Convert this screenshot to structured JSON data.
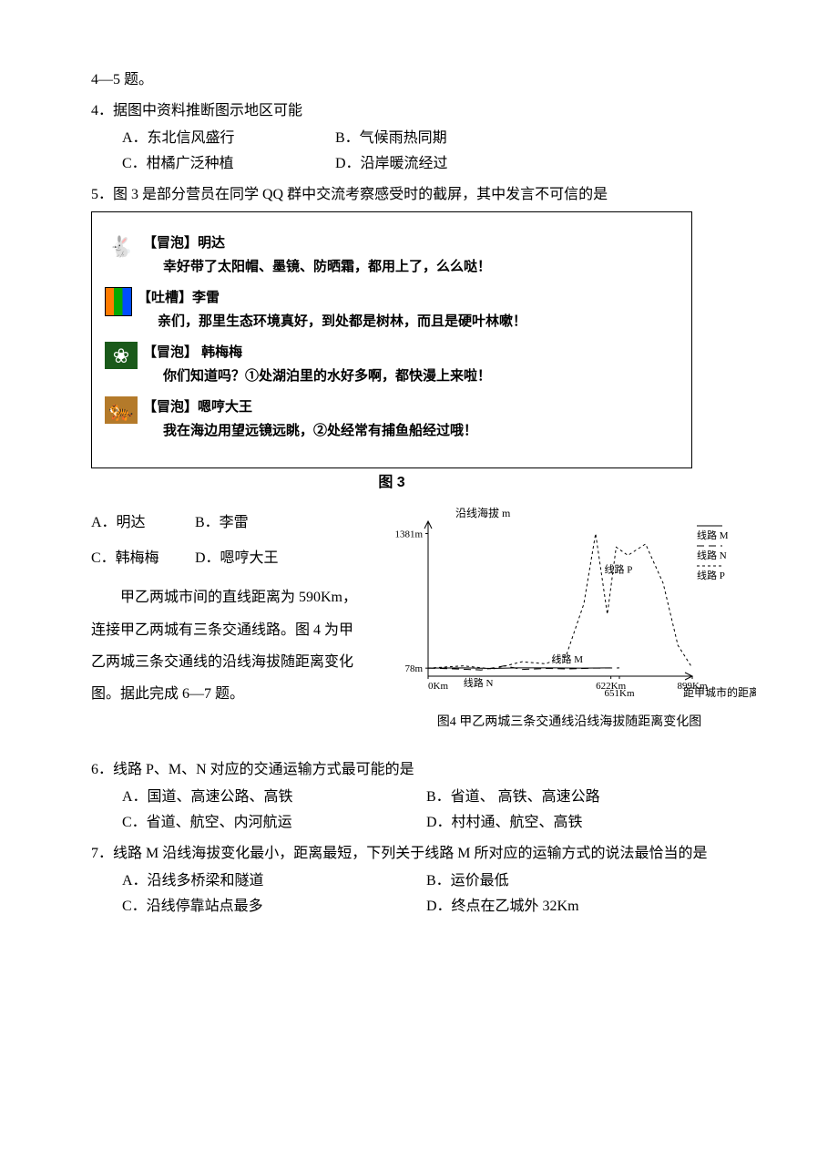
{
  "intro_continued": "4—5 题。",
  "q4": {
    "stem": "4．据图中资料推断图示地区可能",
    "A": "A．东北信风盛行",
    "B": "B．气候雨热同期",
    "C": "C．柑橘广泛种植",
    "D": "D．沿岸暖流经过"
  },
  "q5": {
    "stem": "5．图 3 是部分营员在同学 QQ 群中交流考察感受时的截屏，其中发言不可信的是",
    "chat": [
      {
        "tag": "【冒泡】明达",
        "msg": "幸好带了太阳帽、墨镜、防晒霜，都用上了，么么哒！",
        "avatar": "rabbit",
        "glyph": "🐇"
      },
      {
        "tag": "【吐槽】李雷",
        "msg": "亲们，那里生态环境真好，到处都是树林，而且是硬叶林嗽！",
        "avatar": "bars",
        "glyph": ""
      },
      {
        "tag": "【冒泡】 韩梅梅",
        "msg": "你们知道吗？①处湖泊里的水好多啊，都快漫上来啦！",
        "avatar": "flower",
        "glyph": "❀"
      },
      {
        "tag": "【冒泡】嗯哼大王",
        "msg": "我在海边用望远镜远眺，②处经常有捕鱼船经过哦！",
        "avatar": "tiger",
        "glyph": "🐅"
      }
    ],
    "fig_label": "图 3",
    "A": "A．明达",
    "B": "B．李雷",
    "C": "C．韩梅梅",
    "D": "D．嗯哼大王"
  },
  "para67": "　　甲乙两城市间的直线距离为 590Km，连接甲乙两城有三条交通线路。图 4 为甲乙两城三条交通线的沿线海拔随距离变化图。据此完成 6—7 题。",
  "chart4": {
    "type": "line",
    "y_title": "沿线海拔 m",
    "x_title": "距甲城市的距离 Km",
    "y_ticks": [
      {
        "v": 78,
        "label": "78m"
      },
      {
        "v": 1381,
        "label": "1381m"
      }
    ],
    "x_ticks": [
      {
        "v": 0,
        "label": "0Km"
      },
      {
        "v": 622,
        "label": "622Km"
      },
      {
        "v": 651,
        "label": "651Km"
      },
      {
        "v": 899,
        "label": "899Km"
      }
    ],
    "x_range": [
      0,
      899
    ],
    "y_range": [
      0,
      1500
    ],
    "legend": [
      {
        "name": "线路 M",
        "style": "solid"
      },
      {
        "name": "线路 N",
        "style": "long-dash"
      },
      {
        "name": "线路 P",
        "style": "short-dash"
      }
    ],
    "series": {
      "M": [
        [
          0,
          78
        ],
        [
          120,
          80
        ],
        [
          220,
          75
        ],
        [
          300,
          80
        ],
        [
          420,
          80
        ],
        [
          520,
          78
        ],
        [
          622,
          80
        ]
      ],
      "N": [
        [
          0,
          78
        ],
        [
          100,
          70
        ],
        [
          180,
          60
        ],
        [
          260,
          100
        ],
        [
          320,
          65
        ],
        [
          400,
          75
        ],
        [
          480,
          70
        ],
        [
          560,
          78
        ],
        [
          651,
          80
        ]
      ],
      "P": [
        [
          0,
          78
        ],
        [
          120,
          100
        ],
        [
          220,
          70
        ],
        [
          320,
          140
        ],
        [
          400,
          120
        ],
        [
          470,
          200
        ],
        [
          530,
          700
        ],
        [
          570,
          1381
        ],
        [
          610,
          600
        ],
        [
          640,
          1250
        ],
        [
          680,
          1170
        ],
        [
          740,
          1280
        ],
        [
          800,
          900
        ],
        [
          850,
          300
        ],
        [
          899,
          80
        ]
      ]
    },
    "inline_labels": {
      "left_M": "线路 M",
      "left_N": "线路 N",
      "right_M": "线路 M",
      "right_N": "线路 N",
      "mid_P": "线路 P",
      "right_P": "线路 P"
    },
    "caption": "图4 甲乙两城三条交通线沿线海拔随距离变化图",
    "colors": {
      "axis": "#000000",
      "line": "#000000",
      "bg": "#ffffff"
    },
    "stroke_width": 1
  },
  "q6": {
    "stem": "6．线路 P、M、N 对应的交通运输方式最可能的是",
    "A": "A．国道、高速公路、高铁",
    "B": "B．省道、 高铁、高速公路",
    "C": "C．省道、航空、内河航运",
    "D": "D．村村通、航空、高铁"
  },
  "q7": {
    "stem": "7．线路 M 沿线海拔变化最小，距离最短，下列关于线路 M 所对应的运输方式的说法最恰当的是",
    "A": "A．沿线多桥梁和隧道",
    "B": "B．运价最低",
    "C": "C．沿线停靠站点最多",
    "D": "D．终点在乙城外 32Km"
  }
}
